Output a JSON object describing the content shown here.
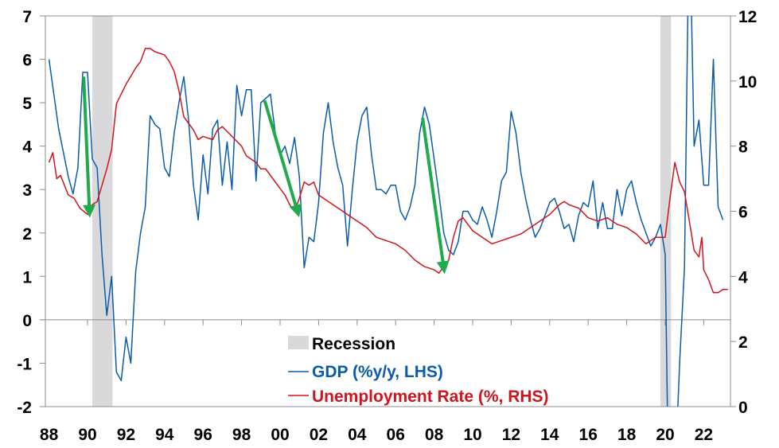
{
  "chart_data": {
    "type": "line",
    "title": "",
    "xlabel": "",
    "ylabel_left": "GDP (%y/y)",
    "ylabel_right": "Unemployment Rate (%)",
    "xlim": [
      1987.8,
      2023.4
    ],
    "ylim_left": [
      -2,
      7
    ],
    "ylim_right": [
      0,
      12
    ],
    "x_ticks": [
      1988,
      1990,
      1992,
      1994,
      1996,
      1998,
      2000,
      2002,
      2004,
      2006,
      2008,
      2010,
      2012,
      2014,
      2016,
      2018,
      2020,
      2022
    ],
    "x_tick_labels": [
      "88",
      "90",
      "92",
      "94",
      "96",
      "98",
      "00",
      "02",
      "04",
      "06",
      "08",
      "10",
      "12",
      "14",
      "16",
      "18",
      "20",
      "22"
    ],
    "y_left_ticks": [
      -2,
      -1,
      0,
      1,
      2,
      3,
      4,
      5,
      6,
      7
    ],
    "y_left_tick_labels": [
      "-2",
      "-1",
      "0",
      "1",
      "2",
      "3",
      "4",
      "5",
      "6",
      "7"
    ],
    "y_right_ticks": [
      0,
      2,
      4,
      6,
      8,
      10,
      12
    ],
    "y_right_tick_labels": [
      "0",
      "2",
      "4",
      "6",
      "8",
      "10",
      "12"
    ],
    "grid": false,
    "legend_position": "bottom-center",
    "legend": [
      "Recession",
      "GDP (%y/y, LHS)",
      "Unemployment Rate (%, RHS)"
    ],
    "colors": {
      "gdp": "#0a5ca8",
      "unemployment": "#d0141e",
      "recession": "#d9d9db",
      "arrow": "#1fab4b",
      "axis": "#8c8c8c"
    },
    "recessions": [
      [
        1990.25,
        1991.3
      ],
      [
        2019.75,
        2020.3
      ]
    ],
    "series": [
      {
        "name": "GDP (%y/y, LHS)",
        "axis": "left",
        "x": [
          1988.0,
          1988.5,
          1989.0,
          1989.25,
          1989.5,
          1989.75,
          1990.0,
          1990.25,
          1990.5,
          1990.75,
          1991.0,
          1991.25,
          1991.5,
          1991.75,
          1992.0,
          1992.25,
          1992.5,
          1992.75,
          1993.0,
          1993.25,
          1993.5,
          1993.75,
          1994.0,
          1994.25,
          1994.5,
          1994.75,
          1995.0,
          1995.25,
          1995.5,
          1995.75,
          1996.0,
          1996.25,
          1996.5,
          1996.75,
          1997.0,
          1997.25,
          1997.5,
          1997.75,
          1998.0,
          1998.25,
          1998.5,
          1998.75,
          1999.0,
          1999.25,
          1999.5,
          1999.75,
          2000.0,
          2000.25,
          2000.5,
          2000.75,
          2001.0,
          2001.25,
          2001.5,
          2001.75,
          2002.0,
          2002.25,
          2002.5,
          2002.75,
          2003.0,
          2003.25,
          2003.5,
          2003.75,
          2004.0,
          2004.25,
          2004.5,
          2004.75,
          2005.0,
          2005.25,
          2005.5,
          2005.75,
          2006.0,
          2006.25,
          2006.5,
          2006.75,
          2007.0,
          2007.25,
          2007.5,
          2007.75,
          2008.0,
          2008.25,
          2008.5,
          2008.75,
          2009.0,
          2009.25,
          2009.5,
          2009.75,
          2010.0,
          2010.25,
          2010.5,
          2010.75,
          2011.0,
          2011.25,
          2011.5,
          2011.75,
          2012.0,
          2012.25,
          2012.5,
          2012.75,
          2013.0,
          2013.25,
          2013.5,
          2013.75,
          2014.0,
          2014.25,
          2014.5,
          2014.75,
          2015.0,
          2015.25,
          2015.5,
          2015.75,
          2016.0,
          2016.25,
          2016.5,
          2016.75,
          2017.0,
          2017.25,
          2017.5,
          2017.75,
          2018.0,
          2018.25,
          2018.5,
          2018.75,
          2019.0,
          2019.25,
          2019.5,
          2019.75,
          2020.0,
          2020.25,
          2020.5,
          2020.75,
          2021.0,
          2021.25,
          2021.5,
          2021.75,
          2022.0,
          2022.25,
          2022.5,
          2022.75,
          2023.0
        ],
        "values": [
          6.0,
          4.4,
          3.3,
          2.9,
          3.5,
          5.7,
          5.7,
          3.7,
          3.5,
          1.5,
          0.1,
          1.0,
          -1.2,
          -1.4,
          -0.4,
          -1.0,
          1.1,
          2.0,
          2.6,
          4.7,
          4.5,
          4.4,
          3.5,
          3.3,
          4.3,
          5.0,
          5.6,
          4.6,
          3.1,
          2.3,
          3.8,
          2.9,
          4.4,
          4.6,
          3.1,
          4.1,
          3.0,
          5.4,
          4.7,
          5.3,
          5.3,
          3.2,
          5.0,
          5.1,
          5.2,
          4.3,
          3.8,
          4.0,
          3.6,
          4.2,
          3.3,
          1.2,
          1.9,
          1.8,
          2.7,
          4.3,
          5.0,
          4.1,
          3.5,
          3.1,
          1.7,
          3.0,
          4.1,
          4.7,
          4.9,
          3.8,
          3.0,
          3.0,
          2.9,
          3.1,
          3.1,
          2.5,
          2.3,
          2.6,
          3.1,
          4.3,
          4.9,
          4.5,
          3.7,
          2.9,
          2.0,
          1.6,
          1.5,
          1.8,
          2.5,
          2.5,
          2.3,
          2.2,
          2.6,
          2.3,
          1.9,
          2.5,
          3.2,
          3.4,
          4.8,
          4.3,
          3.4,
          2.8,
          2.3,
          1.9,
          2.1,
          2.4,
          2.7,
          2.8,
          2.5,
          2.1,
          2.2,
          1.8,
          2.4,
          2.7,
          2.6,
          3.2,
          2.1,
          2.7,
          2.1,
          2.1,
          3.0,
          2.4,
          3.0,
          3.2,
          2.7,
          2.3,
          2.0,
          1.7,
          1.9,
          2.2,
          1.5,
          -6.3,
          -3.7,
          -1.0,
          1.2,
          9.6,
          4.0,
          4.6,
          3.1,
          3.1,
          6.0,
          2.6,
          2.3
        ]
      },
      {
        "name": "Unemployment Rate (%, RHS)",
        "axis": "right",
        "x": [
          1988.0,
          1988.2,
          1988.4,
          1988.6,
          1988.8,
          1989.0,
          1989.3,
          1989.6,
          1990.0,
          1990.25,
          1990.5,
          1990.75,
          1991.0,
          1991.25,
          1991.5,
          1991.75,
          1992.0,
          1992.5,
          1992.75,
          1993.0,
          1993.25,
          1993.5,
          1994.0,
          1994.25,
          1994.5,
          1994.75,
          1995.0,
          1995.25,
          1995.5,
          1995.75,
          1996.0,
          1996.5,
          1996.75,
          1997.0,
          1997.5,
          1998.0,
          1998.25,
          1998.5,
          1998.75,
          1999.0,
          1999.25,
          1999.5,
          2000.0,
          2000.25,
          2000.5,
          2000.75,
          2001.0,
          2001.25,
          2001.5,
          2001.75,
          2002.0,
          2002.5,
          2003.0,
          2003.5,
          2004.0,
          2004.5,
          2005.0,
          2005.5,
          2006.0,
          2006.5,
          2007.0,
          2007.5,
          2008.0,
          2008.25,
          2008.5,
          2008.75,
          2009.0,
          2009.25,
          2009.5,
          2009.75,
          2010.0,
          2010.5,
          2011.0,
          2011.5,
          2012.0,
          2012.5,
          2013.0,
          2013.5,
          2014.0,
          2014.5,
          2014.75,
          2015.0,
          2015.5,
          2016.0,
          2016.5,
          2017.0,
          2017.5,
          2018.0,
          2018.5,
          2019.0,
          2019.5,
          2020.0,
          2020.25,
          2020.5,
          2020.75,
          2021.0,
          2021.25,
          2021.5,
          2021.75,
          2021.9,
          2022.0,
          2022.25,
          2022.5,
          2022.75,
          2023.0,
          2023.25
        ],
        "values": [
          7.5,
          7.8,
          7.0,
          7.1,
          6.8,
          6.5,
          6.4,
          6.1,
          5.9,
          6.2,
          6.3,
          6.8,
          7.3,
          7.9,
          9.3,
          9.6,
          9.9,
          10.4,
          10.6,
          11.0,
          11.0,
          10.9,
          10.8,
          10.6,
          10.3,
          9.7,
          8.9,
          8.7,
          8.5,
          8.2,
          8.3,
          8.2,
          8.5,
          8.6,
          8.3,
          8.0,
          7.7,
          7.6,
          7.5,
          7.3,
          7.3,
          7.1,
          6.7,
          6.5,
          6.2,
          6.0,
          6.4,
          6.9,
          6.8,
          6.9,
          6.5,
          6.3,
          6.1,
          5.9,
          5.7,
          5.5,
          5.2,
          5.1,
          5.0,
          4.8,
          4.5,
          4.3,
          4.2,
          4.1,
          4.3,
          4.5,
          5.2,
          5.7,
          5.8,
          5.6,
          5.4,
          5.2,
          5.0,
          5.1,
          5.2,
          5.3,
          5.5,
          5.7,
          5.9,
          6.2,
          6.3,
          6.2,
          6.1,
          5.8,
          5.7,
          5.8,
          5.6,
          5.5,
          5.3,
          5.0,
          5.2,
          5.2,
          6.4,
          7.5,
          6.9,
          6.6,
          5.7,
          4.8,
          4.6,
          5.2,
          4.2,
          3.9,
          3.5,
          3.5,
          3.6,
          3.6
        ]
      }
    ],
    "annotations": [
      {
        "type": "arrow",
        "from": [
          1989.8,
          5.6
        ],
        "to": [
          1990.1,
          2.5
        ],
        "axis": "left"
      },
      {
        "type": "arrow",
        "from": [
          1999.2,
          5.05
        ],
        "to": [
          2000.9,
          2.5
        ],
        "axis": "left"
      },
      {
        "type": "arrow",
        "from": [
          2007.4,
          4.65
        ],
        "to": [
          2008.5,
          1.2
        ],
        "axis": "left"
      }
    ]
  }
}
